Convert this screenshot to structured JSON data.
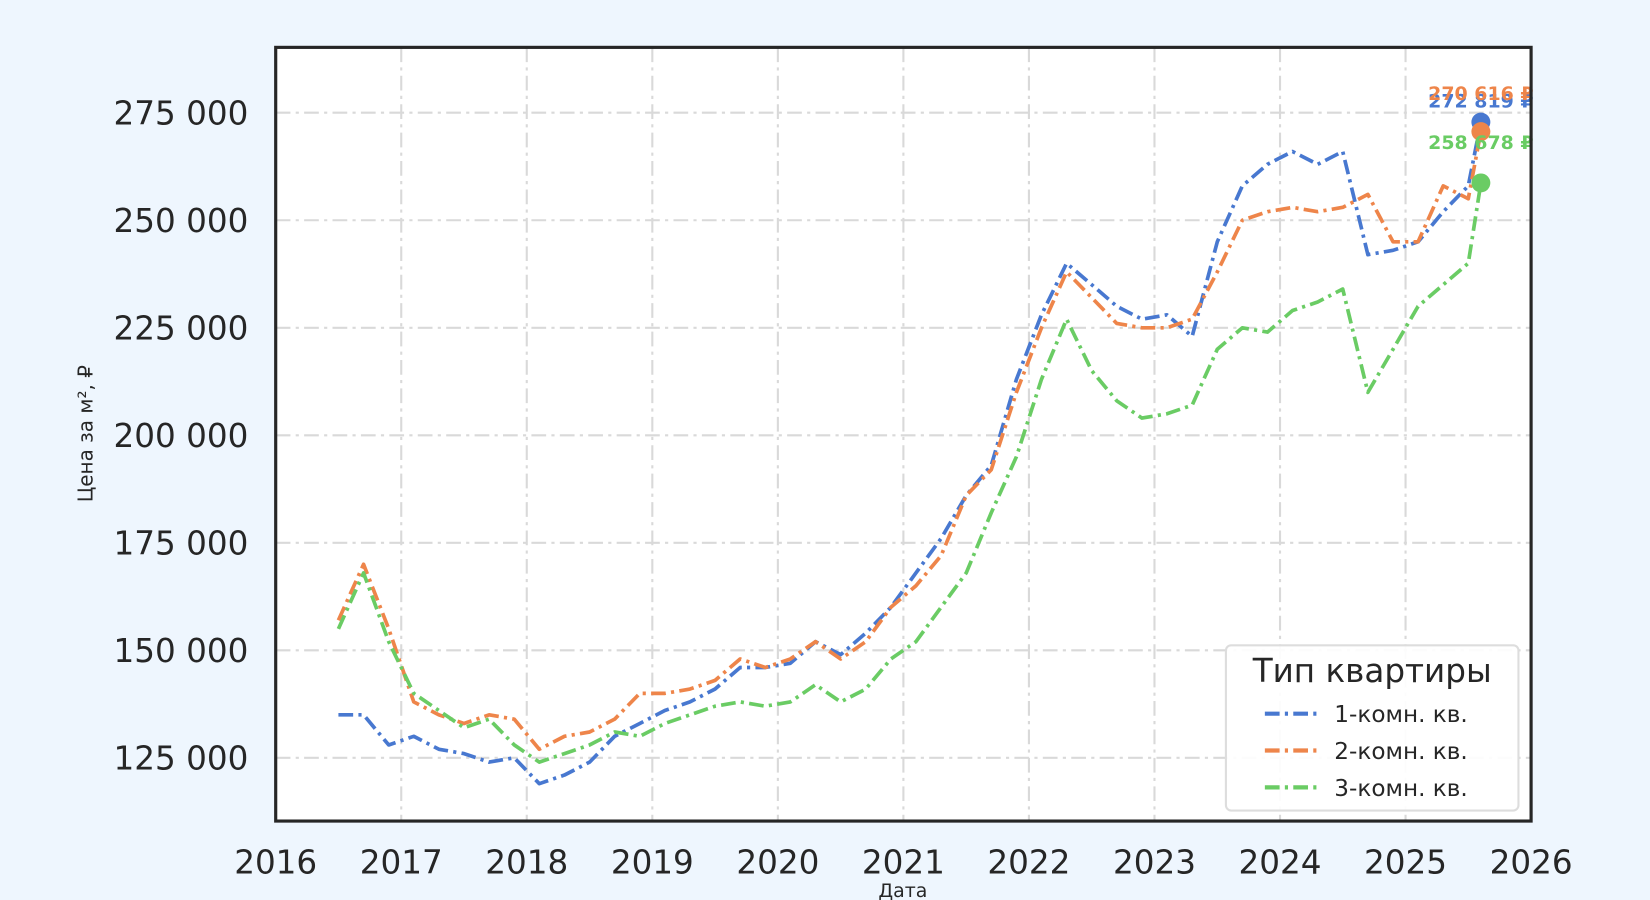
{
  "chart_data": {
    "type": "line",
    "xlabel": "Дата",
    "ylabel": "Цена за м², ₽",
    "x": [
      2016.5,
      2016.7,
      2016.9,
      2017.1,
      2017.3,
      2017.5,
      2017.7,
      2017.9,
      2018.1,
      2018.3,
      2018.5,
      2018.7,
      2018.9,
      2019.1,
      2019.3,
      2019.5,
      2019.7,
      2019.9,
      2020.1,
      2020.3,
      2020.5,
      2020.7,
      2020.9,
      2021.1,
      2021.3,
      2021.5,
      2021.7,
      2021.9,
      2022.1,
      2022.3,
      2022.5,
      2022.7,
      2022.9,
      2023.1,
      2023.3,
      2023.5,
      2023.7,
      2023.9,
      2024.1,
      2024.3,
      2024.5,
      2024.7,
      2024.9,
      2025.1,
      2025.3,
      2025.5,
      2025.6
    ],
    "series": [
      {
        "name": "1-комн. кв.",
        "color": "#4878d0",
        "end_label": "272 819 ₽",
        "values": [
          135000,
          135000,
          128000,
          130000,
          127000,
          126000,
          124000,
          125000,
          119000,
          121000,
          124000,
          130000,
          133000,
          136000,
          138000,
          141000,
          146000,
          146000,
          147000,
          152000,
          149000,
          154000,
          160000,
          168000,
          176000,
          186000,
          193000,
          213000,
          228000,
          240000,
          235000,
          230000,
          227000,
          228000,
          223000,
          245000,
          258000,
          263000,
          266000,
          263000,
          266000,
          242000,
          243000,
          245000,
          252000,
          258000,
          272819
        ]
      },
      {
        "name": "2-комн. кв.",
        "color": "#ee854a",
        "end_label": "270 616 ₽",
        "values": [
          157000,
          170000,
          155000,
          138000,
          135000,
          133000,
          135000,
          134000,
          127000,
          130000,
          131000,
          134000,
          140000,
          140000,
          141000,
          143000,
          148000,
          146000,
          148000,
          152000,
          148000,
          152000,
          160000,
          165000,
          172000,
          186000,
          192000,
          210000,
          225000,
          238000,
          232000,
          226000,
          225000,
          225000,
          227000,
          238000,
          250000,
          252000,
          253000,
          252000,
          253000,
          256000,
          245000,
          245000,
          258000,
          255000,
          270616
        ]
      },
      {
        "name": "3-комн. кв.",
        "color": "#6acc64",
        "end_label": "258 678 ₽",
        "values": [
          155000,
          168000,
          152000,
          140000,
          136000,
          132000,
          134000,
          128000,
          124000,
          126000,
          128000,
          131000,
          130000,
          133000,
          135000,
          137000,
          138000,
          137000,
          138000,
          142000,
          138000,
          141000,
          148000,
          152000,
          160000,
          168000,
          182000,
          195000,
          213000,
          227000,
          215000,
          208000,
          204000,
          205000,
          207000,
          220000,
          225000,
          224000,
          229000,
          231000,
          234000,
          210000,
          220000,
          230000,
          235000,
          240000,
          258678
        ]
      }
    ],
    "xlim": [
      2016,
      2026
    ],
    "xticks": [
      2016,
      2017,
      2018,
      2019,
      2020,
      2021,
      2022,
      2023,
      2024,
      2025,
      2026
    ],
    "ylim": [
      110300,
      290200
    ],
    "yticks": [
      {
        "value": 125000,
        "label": "125 000"
      },
      {
        "value": 150000,
        "label": "150 000"
      },
      {
        "value": 175000,
        "label": "175 000"
      },
      {
        "value": 200000,
        "label": "200 000"
      },
      {
        "value": 225000,
        "label": "225 000"
      },
      {
        "value": 250000,
        "label": "250 000"
      },
      {
        "value": 275000,
        "label": "275 000"
      }
    ],
    "grid": true,
    "legend_title": "Тип квартиры",
    "legend_position": "lower right"
  }
}
